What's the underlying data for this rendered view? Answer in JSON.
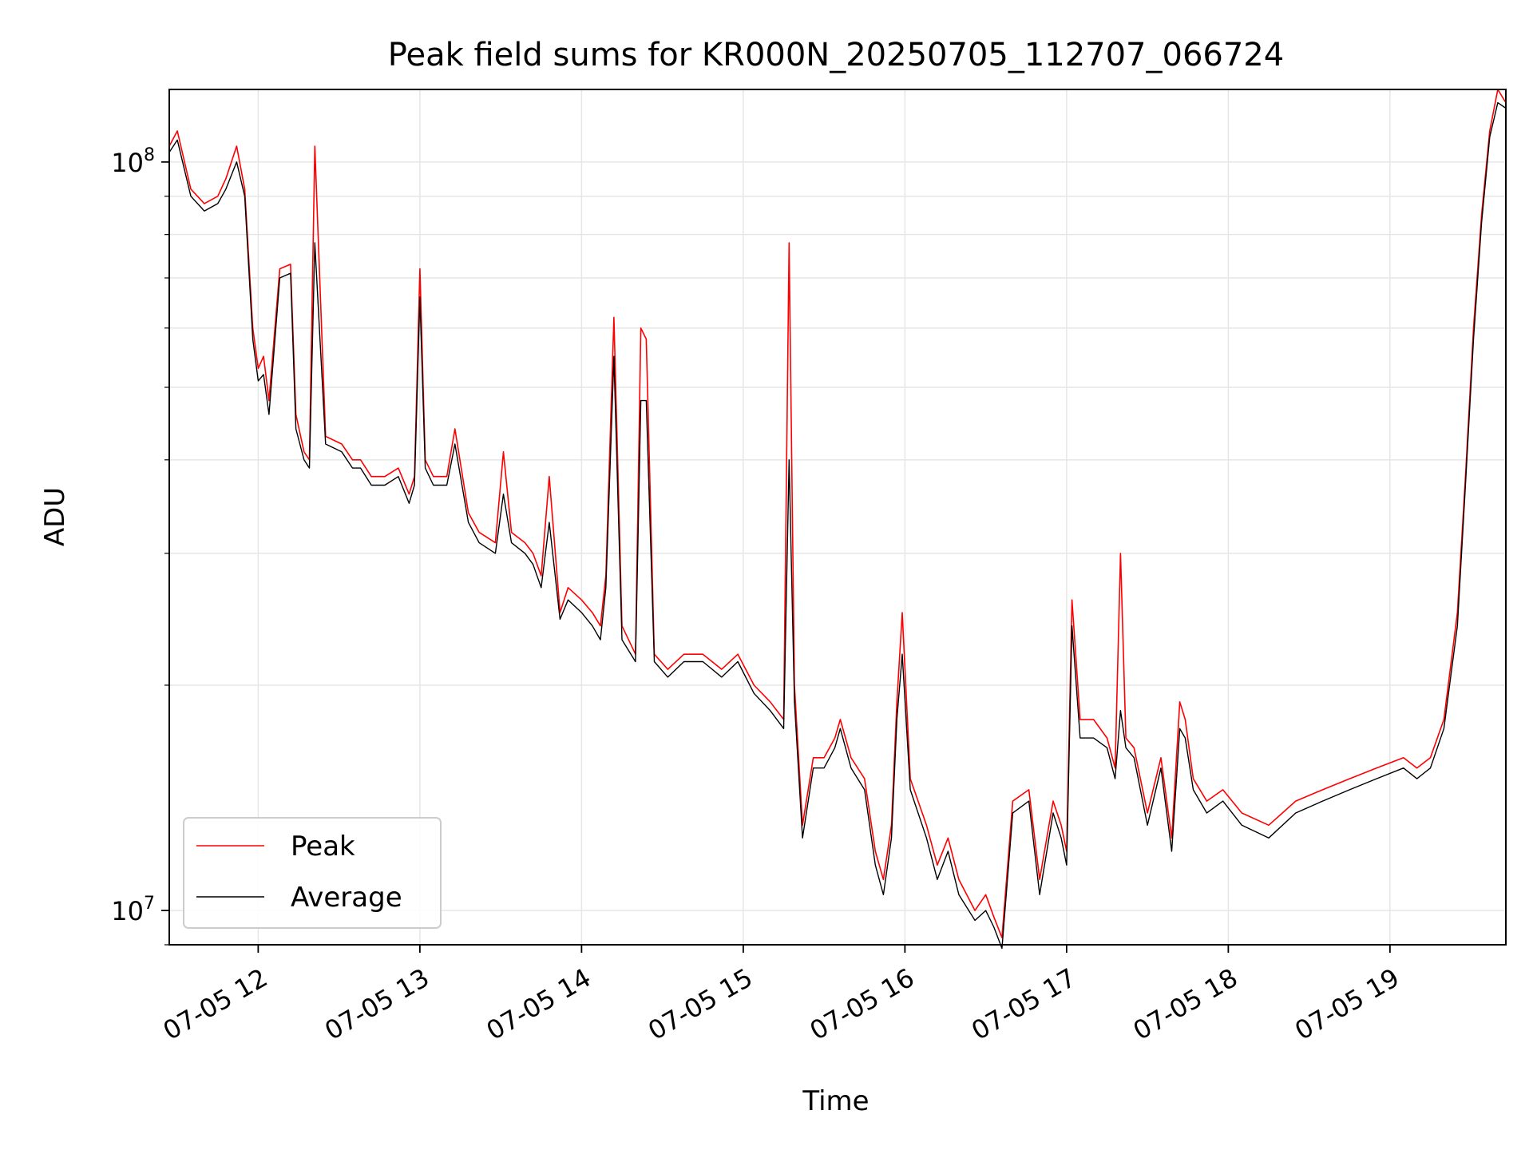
{
  "chart_data": {
    "type": "line",
    "title": "Peak field sums for KR000N_20250705_112707_066724",
    "xlabel": "Time",
    "ylabel": "ADU",
    "yscale": "log",
    "xlim": [
      "2025-07-05 11:27",
      "2025-07-05 19:43"
    ],
    "ylim": [
      9000000,
      125000000
    ],
    "x_tick_labels": [
      "07-05 12",
      "07-05 13",
      "07-05 14",
      "07-05 15",
      "07-05 16",
      "07-05 17",
      "07-05 18",
      "07-05 19"
    ],
    "x_ticks": [
      "2025-07-05 12:00",
      "2025-07-05 13:00",
      "2025-07-05 14:00",
      "2025-07-05 15:00",
      "2025-07-05 16:00",
      "2025-07-05 17:00",
      "2025-07-05 18:00",
      "2025-07-05 19:00"
    ],
    "y_tick_labels": [
      {
        "base": "10",
        "exp": "7",
        "value": 10000000
      },
      {
        "base": "10",
        "exp": "8",
        "value": 100000000
      }
    ],
    "grid": true,
    "legend": {
      "position": "bottom-left"
    },
    "colors": {
      "peak": "#ff0000",
      "average": "#000000",
      "grid": "#e6e6e6"
    },
    "series": [
      {
        "name": "Peak",
        "color": "#ff0000",
        "x": [
          "2025-07-05 11:27",
          "2025-07-05 11:30",
          "2025-07-05 11:35",
          "2025-07-05 11:40",
          "2025-07-05 11:45",
          "2025-07-05 11:48",
          "2025-07-05 11:52",
          "2025-07-05 11:55",
          "2025-07-05 11:58",
          "2025-07-05 12:00",
          "2025-07-05 12:02",
          "2025-07-05 12:04",
          "2025-07-05 12:08",
          "2025-07-05 12:12",
          "2025-07-05 12:14",
          "2025-07-05 12:17",
          "2025-07-05 12:19",
          "2025-07-05 12:21",
          "2025-07-05 12:25",
          "2025-07-05 12:31",
          "2025-07-05 12:35",
          "2025-07-05 12:38",
          "2025-07-05 12:42",
          "2025-07-05 12:47",
          "2025-07-05 12:52",
          "2025-07-05 12:56",
          "2025-07-05 12:58",
          "2025-07-05 13:00",
          "2025-07-05 13:02",
          "2025-07-05 13:05",
          "2025-07-05 13:10",
          "2025-07-05 13:13",
          "2025-07-05 13:18",
          "2025-07-05 13:22",
          "2025-07-05 13:28",
          "2025-07-05 13:31",
          "2025-07-05 13:34",
          "2025-07-05 13:39",
          "2025-07-05 13:42",
          "2025-07-05 13:45",
          "2025-07-05 13:48",
          "2025-07-05 13:52",
          "2025-07-05 13:55",
          "2025-07-05 14:00",
          "2025-07-05 14:04",
          "2025-07-05 14:07",
          "2025-07-05 14:09",
          "2025-07-05 14:12",
          "2025-07-05 14:15",
          "2025-07-05 14:20",
          "2025-07-05 14:22",
          "2025-07-05 14:24",
          "2025-07-05 14:27",
          "2025-07-05 14:32",
          "2025-07-05 14:38",
          "2025-07-05 14:45",
          "2025-07-05 14:52",
          "2025-07-05 14:58",
          "2025-07-05 15:04",
          "2025-07-05 15:10",
          "2025-07-05 15:15",
          "2025-07-05 15:17",
          "2025-07-05 15:19",
          "2025-07-05 15:22",
          "2025-07-05 15:26",
          "2025-07-05 15:30",
          "2025-07-05 15:34",
          "2025-07-05 15:36",
          "2025-07-05 15:40",
          "2025-07-05 15:45",
          "2025-07-05 15:49",
          "2025-07-05 15:52",
          "2025-07-05 15:55",
          "2025-07-05 15:57",
          "2025-07-05 15:59",
          "2025-07-05 16:02",
          "2025-07-05 16:08",
          "2025-07-05 16:12",
          "2025-07-05 16:16",
          "2025-07-05 16:20",
          "2025-07-05 16:26",
          "2025-07-05 16:30",
          "2025-07-05 16:33",
          "2025-07-05 16:36",
          "2025-07-05 16:40",
          "2025-07-05 16:46",
          "2025-07-05 16:50",
          "2025-07-05 16:55",
          "2025-07-05 16:58",
          "2025-07-05 17:00",
          "2025-07-05 17:02",
          "2025-07-05 17:05",
          "2025-07-05 17:10",
          "2025-07-05 17:15",
          "2025-07-05 17:18",
          "2025-07-05 17:20",
          "2025-07-05 17:22",
          "2025-07-05 17:25",
          "2025-07-05 17:30",
          "2025-07-05 17:35",
          "2025-07-05 17:39",
          "2025-07-05 17:42",
          "2025-07-05 17:44",
          "2025-07-05 17:47",
          "2025-07-05 17:52",
          "2025-07-05 17:58",
          "2025-07-05 18:05",
          "2025-07-05 18:15",
          "2025-07-05 18:25",
          "2025-07-05 18:35",
          "2025-07-05 18:45",
          "2025-07-05 18:55",
          "2025-07-05 19:05",
          "2025-07-05 19:10",
          "2025-07-05 19:15",
          "2025-07-05 19:20",
          "2025-07-05 19:25",
          "2025-07-05 19:28",
          "2025-07-05 19:31",
          "2025-07-05 19:34",
          "2025-07-05 19:37",
          "2025-07-05 19:40",
          "2025-07-05 19:43"
        ],
        "values": [
          105000000,
          110000000,
          92000000,
          88000000,
          90000000,
          95000000,
          105000000,
          92000000,
          60000000,
          53000000,
          55000000,
          48000000,
          72000000,
          73000000,
          46000000,
          41000000,
          40000000,
          105000000,
          43000000,
          42000000,
          40000000,
          40000000,
          38000000,
          38000000,
          39000000,
          36000000,
          38000000,
          72000000,
          40000000,
          38000000,
          38000000,
          44000000,
          34000000,
          32000000,
          31000000,
          41000000,
          32000000,
          31000000,
          30000000,
          28000000,
          38000000,
          25000000,
          27000000,
          26000000,
          25000000,
          24000000,
          28000000,
          62000000,
          24000000,
          22000000,
          60000000,
          58000000,
          22000000,
          21000000,
          22000000,
          22000000,
          21000000,
          22000000,
          20000000,
          19000000,
          18000000,
          78000000,
          20000000,
          13000000,
          16000000,
          16000000,
          17000000,
          18000000,
          16000000,
          15000000,
          12000000,
          11000000,
          13000000,
          19000000,
          25000000,
          15000000,
          13000000,
          11500000,
          12500000,
          11000000,
          10000000,
          10500000,
          9800000,
          9200000,
          14000000,
          14500000,
          11000000,
          14000000,
          13000000,
          12000000,
          26000000,
          18000000,
          18000000,
          17000000,
          15500000,
          30000000,
          17000000,
          16500000,
          13500000,
          16000000,
          12500000,
          19000000,
          18000000,
          15000000,
          14000000,
          14500000,
          13500000,
          13000000,
          14000000,
          14500000,
          15000000,
          15500000,
          16000000,
          15500000,
          16000000,
          18000000,
          25000000,
          38000000,
          60000000,
          85000000,
          110000000,
          125000000,
          120000000
        ]
      },
      {
        "name": "Average",
        "color": "#000000",
        "x": [
          "2025-07-05 11:27",
          "2025-07-05 11:30",
          "2025-07-05 11:35",
          "2025-07-05 11:40",
          "2025-07-05 11:45",
          "2025-07-05 11:48",
          "2025-07-05 11:52",
          "2025-07-05 11:55",
          "2025-07-05 11:58",
          "2025-07-05 12:00",
          "2025-07-05 12:02",
          "2025-07-05 12:04",
          "2025-07-05 12:08",
          "2025-07-05 12:12",
          "2025-07-05 12:14",
          "2025-07-05 12:17",
          "2025-07-05 12:19",
          "2025-07-05 12:21",
          "2025-07-05 12:25",
          "2025-07-05 12:31",
          "2025-07-05 12:35",
          "2025-07-05 12:38",
          "2025-07-05 12:42",
          "2025-07-05 12:47",
          "2025-07-05 12:52",
          "2025-07-05 12:56",
          "2025-07-05 12:58",
          "2025-07-05 13:00",
          "2025-07-05 13:02",
          "2025-07-05 13:05",
          "2025-07-05 13:10",
          "2025-07-05 13:13",
          "2025-07-05 13:18",
          "2025-07-05 13:22",
          "2025-07-05 13:28",
          "2025-07-05 13:31",
          "2025-07-05 13:34",
          "2025-07-05 13:39",
          "2025-07-05 13:42",
          "2025-07-05 13:45",
          "2025-07-05 13:48",
          "2025-07-05 13:52",
          "2025-07-05 13:55",
          "2025-07-05 14:00",
          "2025-07-05 14:04",
          "2025-07-05 14:07",
          "2025-07-05 14:09",
          "2025-07-05 14:12",
          "2025-07-05 14:15",
          "2025-07-05 14:20",
          "2025-07-05 14:22",
          "2025-07-05 14:24",
          "2025-07-05 14:27",
          "2025-07-05 14:32",
          "2025-07-05 14:38",
          "2025-07-05 14:45",
          "2025-07-05 14:52",
          "2025-07-05 14:58",
          "2025-07-05 15:04",
          "2025-07-05 15:10",
          "2025-07-05 15:15",
          "2025-07-05 15:17",
          "2025-07-05 15:19",
          "2025-07-05 15:22",
          "2025-07-05 15:26",
          "2025-07-05 15:30",
          "2025-07-05 15:34",
          "2025-07-05 15:36",
          "2025-07-05 15:40",
          "2025-07-05 15:45",
          "2025-07-05 15:49",
          "2025-07-05 15:52",
          "2025-07-05 15:55",
          "2025-07-05 15:57",
          "2025-07-05 15:59",
          "2025-07-05 16:02",
          "2025-07-05 16:08",
          "2025-07-05 16:12",
          "2025-07-05 16:16",
          "2025-07-05 16:20",
          "2025-07-05 16:26",
          "2025-07-05 16:30",
          "2025-07-05 16:33",
          "2025-07-05 16:36",
          "2025-07-05 16:40",
          "2025-07-05 16:46",
          "2025-07-05 16:50",
          "2025-07-05 16:55",
          "2025-07-05 16:58",
          "2025-07-05 17:00",
          "2025-07-05 17:02",
          "2025-07-05 17:05",
          "2025-07-05 17:10",
          "2025-07-05 17:15",
          "2025-07-05 17:18",
          "2025-07-05 17:20",
          "2025-07-05 17:22",
          "2025-07-05 17:25",
          "2025-07-05 17:30",
          "2025-07-05 17:35",
          "2025-07-05 17:39",
          "2025-07-05 17:42",
          "2025-07-05 17:44",
          "2025-07-05 17:47",
          "2025-07-05 17:52",
          "2025-07-05 17:58",
          "2025-07-05 18:05",
          "2025-07-05 18:15",
          "2025-07-05 18:25",
          "2025-07-05 18:35",
          "2025-07-05 18:45",
          "2025-07-05 18:55",
          "2025-07-05 19:05",
          "2025-07-05 19:10",
          "2025-07-05 19:15",
          "2025-07-05 19:20",
          "2025-07-05 19:25",
          "2025-07-05 19:28",
          "2025-07-05 19:31",
          "2025-07-05 19:34",
          "2025-07-05 19:37",
          "2025-07-05 19:40",
          "2025-07-05 19:43"
        ],
        "values": [
          103000000,
          107000000,
          90000000,
          86000000,
          88000000,
          92000000,
          100000000,
          90000000,
          58000000,
          51000000,
          52000000,
          46000000,
          70000000,
          71000000,
          44000000,
          40000000,
          39000000,
          78000000,
          42000000,
          41000000,
          39000000,
          39000000,
          37000000,
          37000000,
          38000000,
          35000000,
          37000000,
          66000000,
          39000000,
          37000000,
          37000000,
          42000000,
          33000000,
          31000000,
          30000000,
          36000000,
          31000000,
          30000000,
          29000000,
          27000000,
          33000000,
          24500000,
          26000000,
          25000000,
          24000000,
          23000000,
          27000000,
          55000000,
          23000000,
          21500000,
          48000000,
          48000000,
          21500000,
          20500000,
          21500000,
          21500000,
          20500000,
          21500000,
          19500000,
          18500000,
          17500000,
          40000000,
          19000000,
          12500000,
          15500000,
          15500000,
          16500000,
          17500000,
          15500000,
          14500000,
          11500000,
          10500000,
          12500000,
          18000000,
          22000000,
          14500000,
          12500000,
          11000000,
          12000000,
          10500000,
          9700000,
          10000000,
          9500000,
          8900000,
          13500000,
          14000000,
          10500000,
          13500000,
          12500000,
          11500000,
          24000000,
          17000000,
          17000000,
          16500000,
          15000000,
          18500000,
          16500000,
          16000000,
          13000000,
          15500000,
          12000000,
          17500000,
          17000000,
          14500000,
          13500000,
          14000000,
          13000000,
          12500000,
          13500000,
          14000000,
          14500000,
          15000000,
          15500000,
          15000000,
          15500000,
          17500000,
          24000000,
          37000000,
          58000000,
          83000000,
          108000000,
          120000000,
          118000000
        ]
      }
    ]
  }
}
